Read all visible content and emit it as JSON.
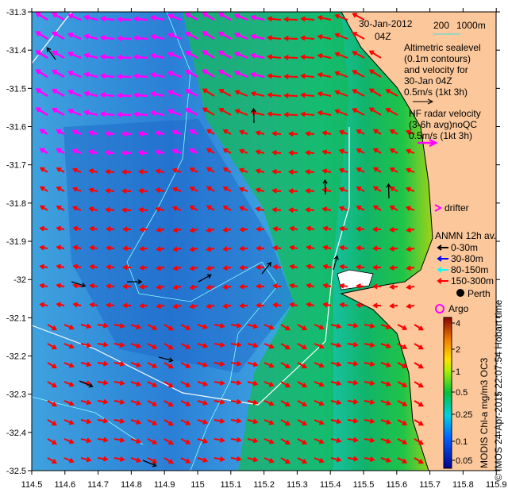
{
  "title": {
    "date": "30-Jan-2012",
    "time": "04Z"
  },
  "depth_legend": {
    "c1": "200",
    "c2": "1000m"
  },
  "altimetry_legend": [
    "Altimetric sealevel",
    "(0.1m contours)",
    "and velocity for",
    "30-Jan 04Z",
    "0.5m/s (1kt 3h)"
  ],
  "hf_radar_legend": [
    "HF radar velocity",
    "(3-6h avg)noQC",
    "0.5m/s (1kt 3h)"
  ],
  "drifter_label": "drifter",
  "anmn_legend": {
    "title": "ANMN 12h av.",
    "items": [
      {
        "label": "0-30m",
        "color": "#000000"
      },
      {
        "label": "30-80m",
        "color": "#0000ff"
      },
      {
        "label": "80-150m",
        "color": "#00ffff"
      },
      {
        "label": "150-300m",
        "color": "#ff0000"
      }
    ]
  },
  "place_label": "Perth",
  "argo_label": "Argo",
  "colorbar": {
    "title": "MODIS Chl-a mg/m3 OC3",
    "ticks": [
      "4",
      "2",
      "1",
      "0.5",
      "0.25",
      "0.1",
      "0.05"
    ]
  },
  "credit": "© IMOS 24-Apr-2015 22:07:54 Hobart time",
  "axes": {
    "x_ticks": [
      "114.5",
      "114.6",
      "114.7",
      "114.8",
      "114.9",
      "115",
      "115.1",
      "115.2",
      "115.3",
      "115.4",
      "115.5",
      "115.6",
      "115.7",
      "115.8",
      "115.9"
    ],
    "y_ticks": [
      "-31.3",
      "-31.4",
      "-31.5",
      "-31.6",
      "-31.7",
      "-31.8",
      "-31.9",
      "-32",
      "-32.1",
      "-32.2",
      "-32.3",
      "-32.4",
      "-32.5"
    ]
  },
  "colors": {
    "land": "#fcc89b",
    "altimetry_arrow": "#000000",
    "hf_radar_arrow": "#ff00ff",
    "current_arrow": "#ff0000"
  }
}
